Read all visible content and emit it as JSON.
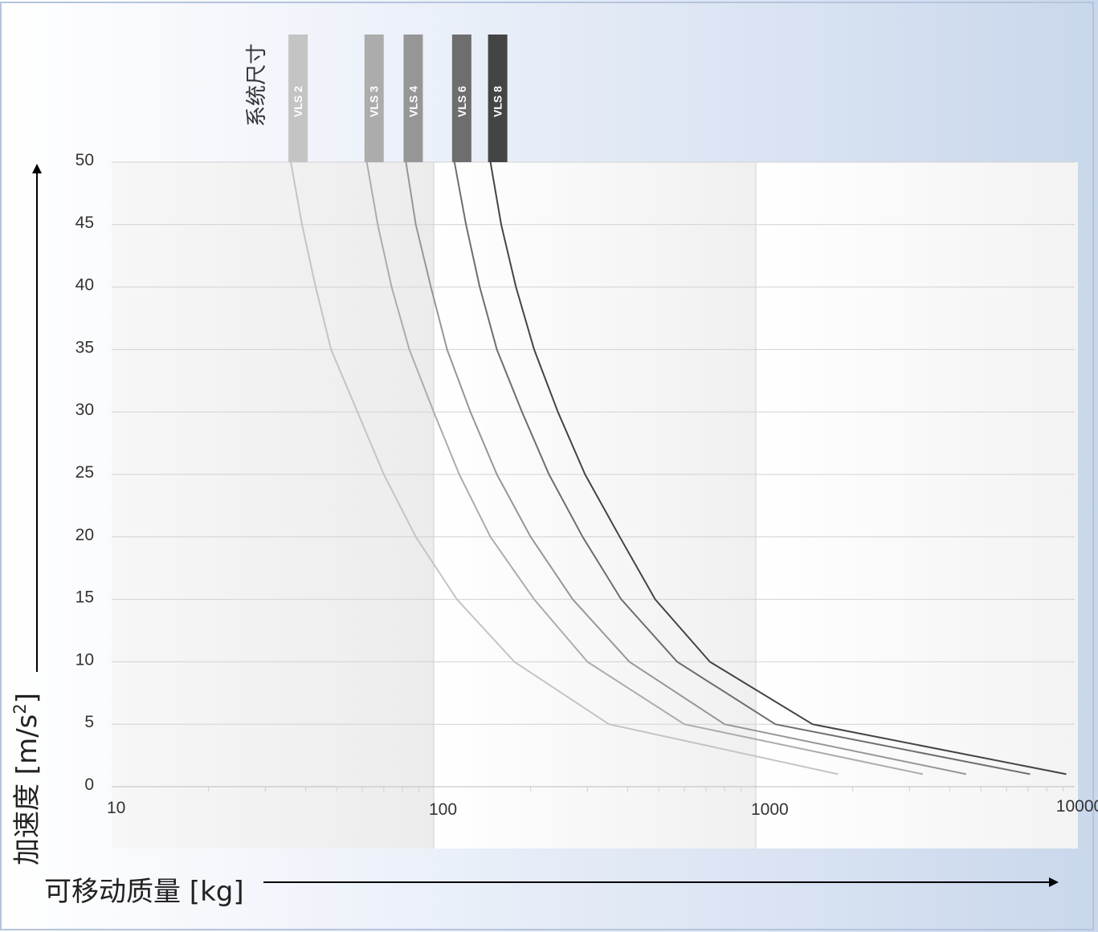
{
  "chart_data": {
    "type": "line",
    "xlabel": "可移动质量 [kg]",
    "ylabel_main": "加速度 [m/s",
    "ylabel_sup": "2",
    "ylabel_end": "]",
    "legend_title": "系统尺寸",
    "x_scale": "log",
    "xlim": [
      10,
      10000
    ],
    "ylim": [
      0,
      50
    ],
    "x_ticks": [
      10,
      100,
      1000,
      10000
    ],
    "x_tick_labels": [
      "10",
      "100",
      "1000",
      "10000"
    ],
    "y_ticks": [
      0,
      5,
      10,
      15,
      20,
      25,
      30,
      35,
      40,
      45,
      50
    ],
    "y_tick_labels": [
      "0",
      "5",
      "10",
      "15",
      "20",
      "25",
      "30",
      "35",
      "40",
      "45",
      "50"
    ],
    "grid": "horizontal",
    "legend_placement": "top",
    "series": [
      {
        "name": "VLS 2",
        "color": "#c4c4c4",
        "points": [
          [
            36,
            50
          ],
          [
            39,
            45
          ],
          [
            43,
            40
          ],
          [
            48,
            35
          ],
          [
            58,
            30
          ],
          [
            70,
            25
          ],
          [
            88,
            20
          ],
          [
            118,
            15
          ],
          [
            178,
            10
          ],
          [
            350,
            5
          ],
          [
            1800,
            1
          ]
        ]
      },
      {
        "name": "VLS 3",
        "color": "#acacac",
        "points": [
          [
            62,
            50
          ],
          [
            67,
            45
          ],
          [
            74,
            40
          ],
          [
            84,
            35
          ],
          [
            100,
            30
          ],
          [
            120,
            25
          ],
          [
            150,
            20
          ],
          [
            205,
            15
          ],
          [
            300,
            10
          ],
          [
            600,
            5
          ],
          [
            3300,
            1
          ]
        ]
      },
      {
        "name": "VLS 4",
        "color": "#969696",
        "points": [
          [
            82,
            50
          ],
          [
            88,
            45
          ],
          [
            98,
            40
          ],
          [
            110,
            35
          ],
          [
            130,
            30
          ],
          [
            157,
            25
          ],
          [
            200,
            20
          ],
          [
            270,
            15
          ],
          [
            405,
            10
          ],
          [
            800,
            5
          ],
          [
            4500,
            1
          ]
        ]
      },
      {
        "name": "VLS 6",
        "color": "#6e6e6e",
        "points": [
          [
            116,
            50
          ],
          [
            126,
            45
          ],
          [
            139,
            40
          ],
          [
            157,
            35
          ],
          [
            188,
            30
          ],
          [
            228,
            25
          ],
          [
            290,
            20
          ],
          [
            382,
            15
          ],
          [
            570,
            10
          ],
          [
            1150,
            5
          ],
          [
            7100,
            1
          ]
        ]
      },
      {
        "name": "VLS 8",
        "color": "#444444",
        "points": [
          [
            150,
            50
          ],
          [
            162,
            45
          ],
          [
            180,
            40
          ],
          [
            205,
            35
          ],
          [
            243,
            30
          ],
          [
            295,
            25
          ],
          [
            378,
            20
          ],
          [
            487,
            15
          ],
          [
            720,
            10
          ],
          [
            1500,
            5
          ],
          [
            9200,
            1
          ]
        ]
      }
    ]
  }
}
